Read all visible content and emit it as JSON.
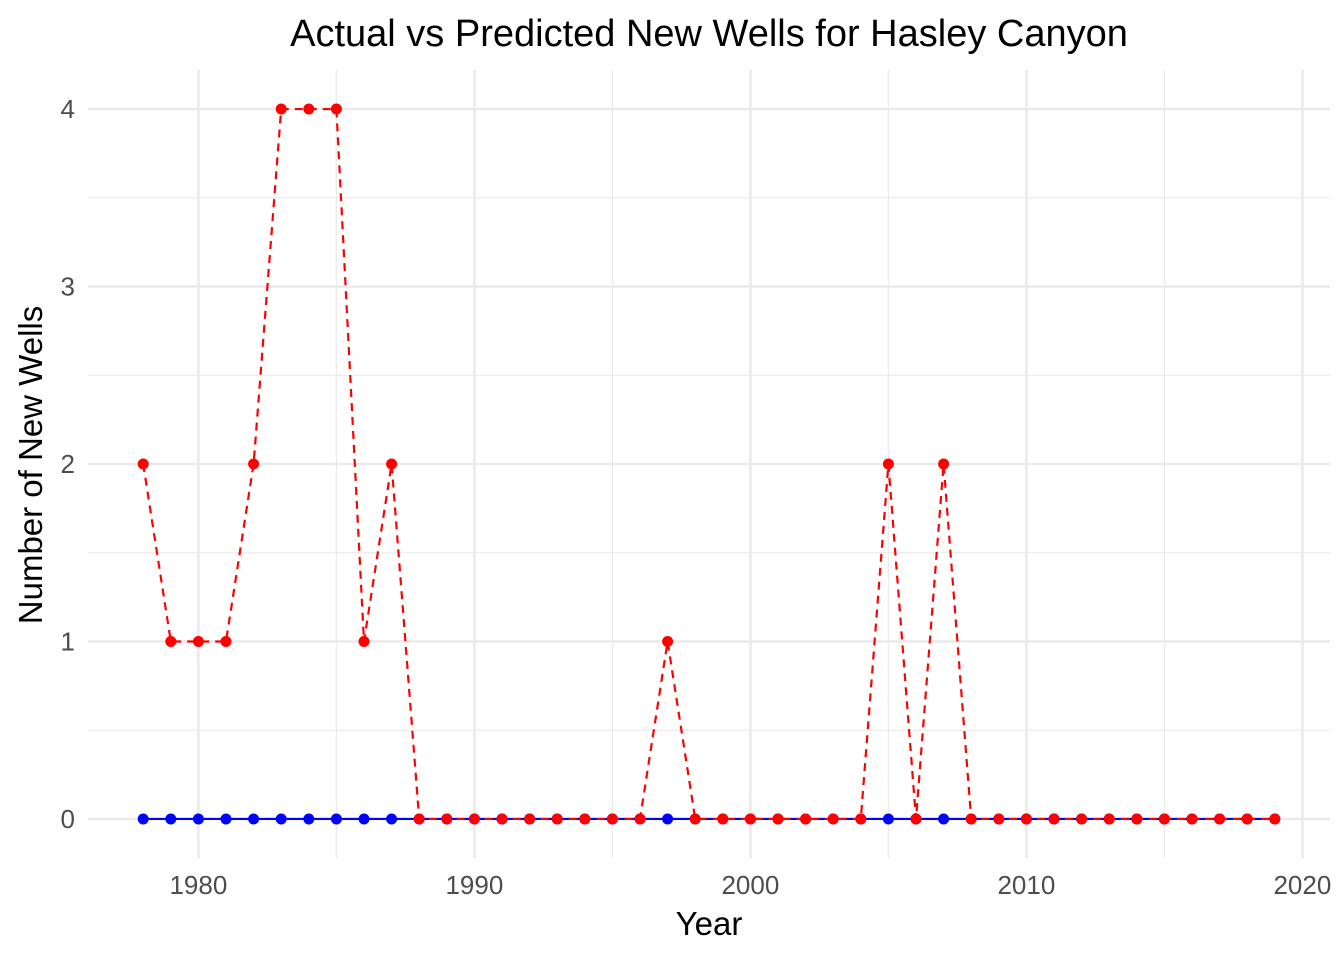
{
  "chart_data": {
    "type": "line",
    "title": "Actual vs Predicted New Wells for Hasley Canyon",
    "xlabel": "Year",
    "ylabel": "Number of New Wells",
    "xlim": [
      1976,
      2021
    ],
    "ylim": [
      -0.22,
      4.22
    ],
    "x_ticks": [
      1980,
      1990,
      2000,
      2010,
      2020
    ],
    "y_ticks": [
      0,
      1,
      2,
      3,
      4
    ],
    "grid": true,
    "legend": "none",
    "x": [
      1978,
      1979,
      1980,
      1981,
      1982,
      1983,
      1984,
      1985,
      1986,
      1987,
      1988,
      1989,
      1990,
      1991,
      1992,
      1993,
      1994,
      1995,
      1996,
      1997,
      1998,
      1999,
      2000,
      2001,
      2002,
      2003,
      2004,
      2005,
      2006,
      2007,
      2008,
      2009,
      2010,
      2011,
      2012,
      2013,
      2014,
      2015,
      2016,
      2017,
      2018,
      2019
    ],
    "series": [
      {
        "color": "#0000ff",
        "line_style": "solid",
        "values": [
          0,
          0,
          0,
          0,
          0,
          0,
          0,
          0,
          0,
          0,
          0,
          0,
          0,
          0,
          0,
          0,
          0,
          0,
          0,
          0,
          0,
          0,
          0,
          0,
          0,
          0,
          0,
          0,
          0,
          0,
          0,
          0,
          0,
          0,
          0,
          0,
          0,
          0,
          0,
          0,
          0,
          0
        ]
      },
      {
        "color": "#ff0000",
        "line_style": "dashed",
        "values": [
          2,
          1,
          1,
          1,
          2,
          4,
          4,
          4,
          1,
          2,
          0,
          0,
          0,
          0,
          0,
          0,
          0,
          0,
          0,
          1,
          0,
          0,
          0,
          0,
          0,
          0,
          0,
          2,
          0,
          2,
          0,
          0,
          0,
          0,
          0,
          0,
          0,
          0,
          0,
          0,
          0,
          0
        ]
      }
    ]
  }
}
